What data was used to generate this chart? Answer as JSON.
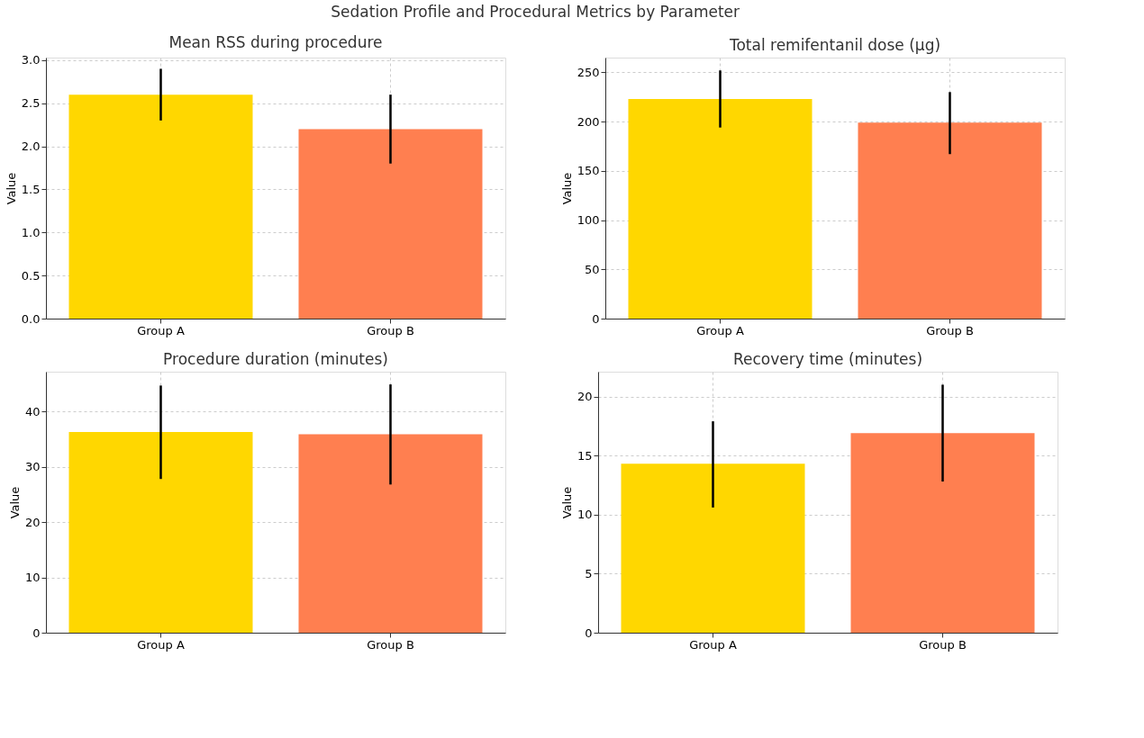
{
  "chart_data": [
    {
      "type": "bar",
      "title": "Mean RSS during procedure",
      "ylabel": "Value",
      "categories": [
        "Group A",
        "Group B"
      ],
      "values": [
        2.6,
        2.2
      ],
      "colors": [
        "#ffd700",
        "#ff7f50"
      ],
      "errors": [
        [
          2.3,
          2.9
        ],
        [
          1.8,
          2.6
        ]
      ],
      "ylim": [
        0,
        3.03
      ],
      "yticks": [
        {
          "value": 0,
          "label": "0.0"
        },
        0.5,
        {
          "value": 1,
          "label": "1.0"
        },
        1.5,
        {
          "value": 2,
          "label": "2.0"
        },
        2.5,
        {
          "value": 3,
          "label": "3.0"
        }
      ],
      "grid": true,
      "annotations": [
        "Sedation Profile and Procedural Metrics by Parameter"
      ]
    },
    {
      "type": "bar",
      "title": "Total remifentanil dose (μg)",
      "ylabel": "Value",
      "categories": [
        "Group A",
        "Group B"
      ],
      "values": [
        223,
        199
      ],
      "colors": [
        "#ffd700",
        "#ff7f50"
      ],
      "errors": [
        [
          194,
          252
        ],
        [
          167,
          230
        ]
      ],
      "ylim": [
        0,
        265
      ],
      "yticks": [
        0,
        50,
        100,
        150,
        200,
        250
      ],
      "grid": true
    },
    {
      "type": "bar",
      "title": "Procedure duration (minutes)",
      "ylabel": "Value",
      "categories": [
        "Group A",
        "Group B"
      ],
      "values": [
        36.3,
        35.9
      ],
      "colors": [
        "#ffd700",
        "#ff7f50"
      ],
      "errors": [
        [
          27.8,
          44.7
        ],
        [
          26.8,
          44.9
        ]
      ],
      "ylim": [
        0,
        47.2
      ],
      "yticks": [
        0,
        10,
        20,
        30,
        40
      ],
      "grid": true
    },
    {
      "type": "bar",
      "title": "Recovery time (minutes)",
      "ylabel": "Value",
      "categories": [
        "Group A",
        "Group B"
      ],
      "values": [
        14.3,
        16.9
      ],
      "colors": [
        "#ffd700",
        "#ff7f50"
      ],
      "errors": [
        [
          10.6,
          17.9
        ],
        [
          12.8,
          21.0
        ]
      ],
      "ylim": [
        0,
        22.1
      ],
      "yticks": [
        0,
        5,
        10,
        15,
        20
      ],
      "grid": true
    }
  ]
}
